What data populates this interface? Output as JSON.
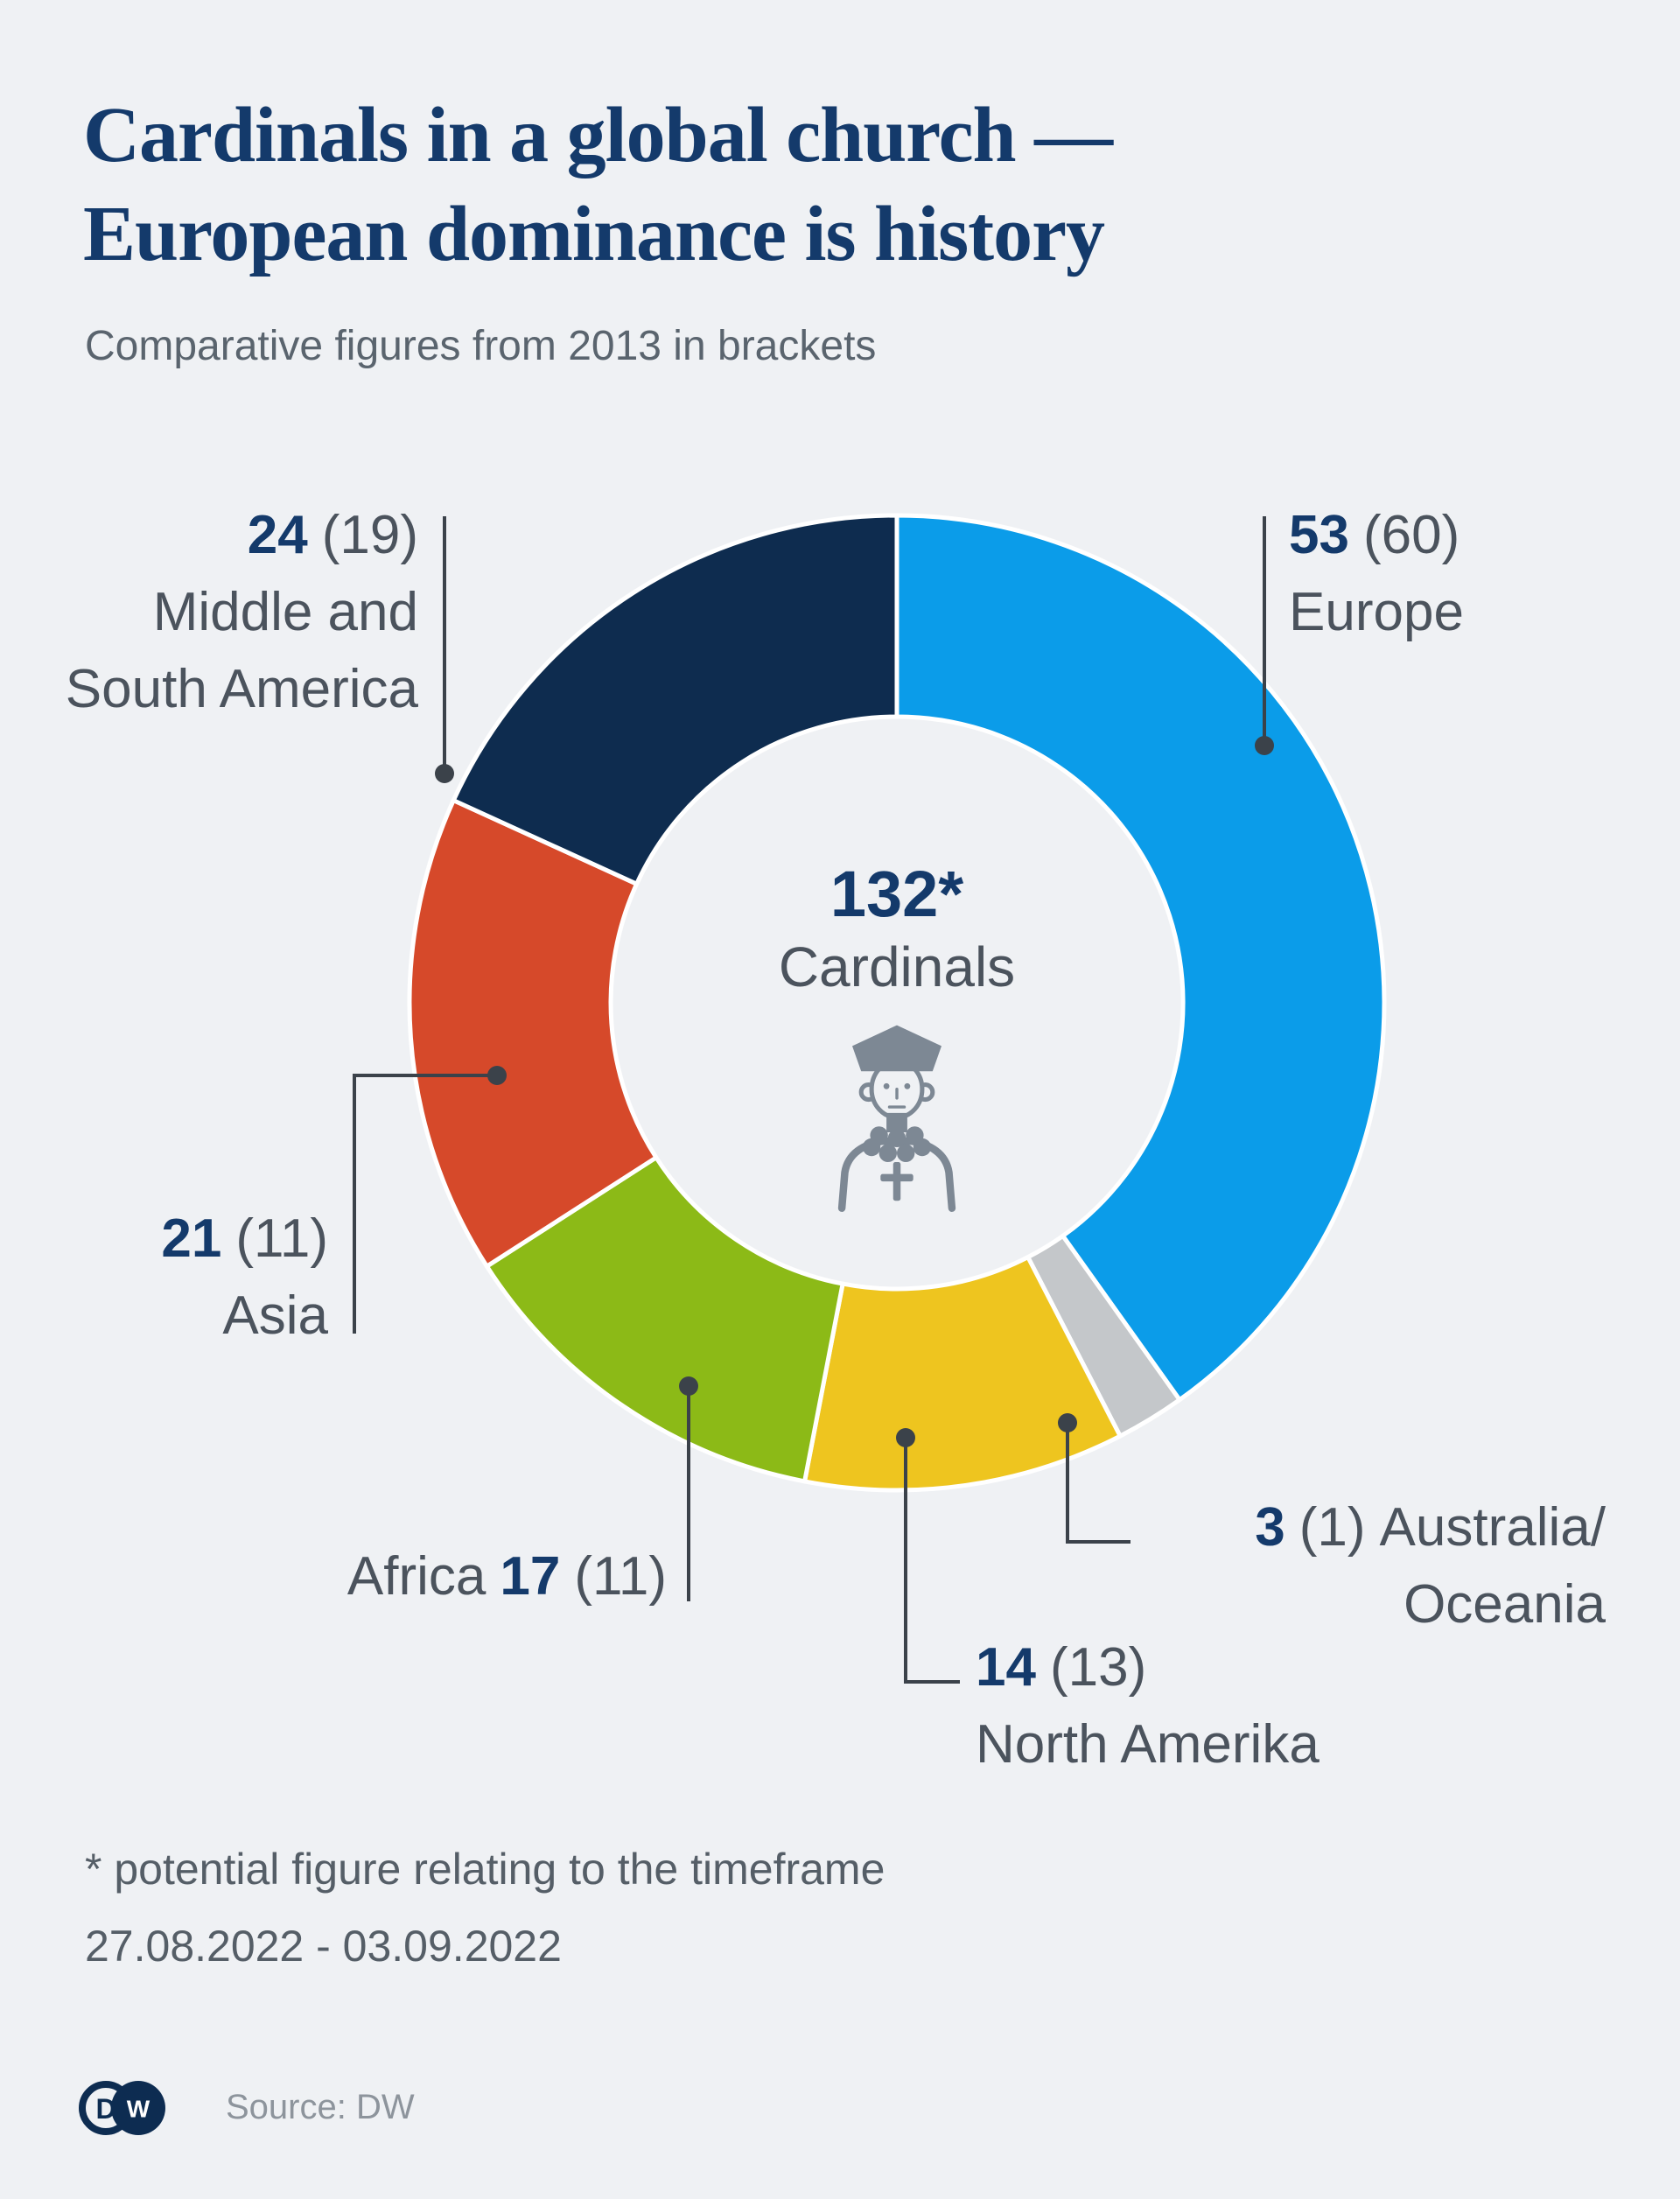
{
  "page": {
    "background": "#eff1f4",
    "divider_color": "#ffffff",
    "leader_color": "#3b424a"
  },
  "header": {
    "title_line1": "Cardinals in a global church —",
    "title_line2": "European dominance is history",
    "subtitle": "Comparative figures from 2013 in brackets"
  },
  "chart_data": {
    "type": "pie",
    "donut": true,
    "title": "Cardinals in a global church — European dominance is history",
    "subtitle": "Comparative figures from 2013 in brackets",
    "center_value": "132*",
    "center_label": "Cardinals",
    "total": 132,
    "start_angle_deg": 0,
    "direction": "clockwise",
    "legend_position": "callouts-around-donut",
    "segments": [
      {
        "label": "Europe",
        "value": 53,
        "value_2013": 60,
        "color": "#0b9ce9"
      },
      {
        "label": "Australia/Oceania",
        "value": 3,
        "value_2013": 1,
        "color": "#c4c7ca"
      },
      {
        "label": "North Amerika",
        "value": 14,
        "value_2013": 13,
        "color": "#eec51f"
      },
      {
        "label": "Africa",
        "value": 17,
        "value_2013": 11,
        "color": "#8cba17"
      },
      {
        "label": "Asia",
        "value": 21,
        "value_2013": 11,
        "color": "#d6492a"
      },
      {
        "label": "Middle and South America",
        "value": 24,
        "value_2013": 19,
        "color": "#0e2c4f"
      }
    ]
  },
  "callouts": {
    "europe": {
      "num": "53",
      "paren": "(60)",
      "name": "Europe"
    },
    "middle_south_america": {
      "num": "24",
      "paren": "(19)",
      "name_line1": "Middle and",
      "name_line2": "South America"
    },
    "asia": {
      "num": "21",
      "paren": "(11)",
      "name": "Asia"
    },
    "africa": {
      "name": "Africa",
      "num": "17",
      "paren": "(11)"
    },
    "north_america": {
      "num": "14",
      "paren": "(13)",
      "name": "North Amerika"
    },
    "australia_oceania": {
      "num": "3",
      "paren": "(1)",
      "name_line1": "Australia/",
      "name_line2": "Oceania"
    }
  },
  "footnote": {
    "line1": "* potential figure relating to the timeframe",
    "line2": "27.08.2022 - 03.09.2022"
  },
  "footer": {
    "source": "Source: DW",
    "logo": {
      "d": "D",
      "w": "W",
      "color": "#0d2c51"
    }
  }
}
